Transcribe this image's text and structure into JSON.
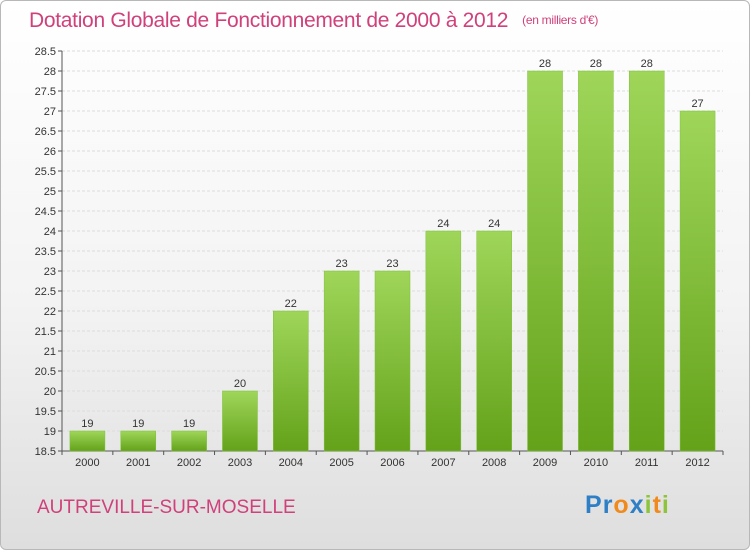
{
  "header": {
    "title": "Dotation Globale de Fonctionnement de 2000 à 2012",
    "unit": "(en milliers d'€)"
  },
  "footer": {
    "commune": "AUTREVILLE-SUR-MOSELLE",
    "logo": {
      "text": "Proxiti",
      "letters": [
        {
          "ch": "P",
          "color": "#2e7fc6"
        },
        {
          "ch": "r",
          "color": "#2e7fc6"
        },
        {
          "ch": "o",
          "color": "#f08a1c"
        },
        {
          "ch": "x",
          "color": "#2e7fc6"
        },
        {
          "ch": "i",
          "color": "#8cc43c"
        },
        {
          "ch": "t",
          "color": "#f08a1c"
        },
        {
          "ch": "i",
          "color": "#8cc43c"
        }
      ]
    }
  },
  "colors": {
    "bar_top": "#9fd65a",
    "bar_bottom": "#64a21a",
    "title": "#d0407a"
  },
  "chart_data": {
    "type": "bar",
    "title": "Dotation Globale de Fonctionnement de 2000 à 2012",
    "xlabel": "",
    "ylabel": "",
    "categories": [
      "2000",
      "2001",
      "2002",
      "2003",
      "2004",
      "2005",
      "2006",
      "2007",
      "2008",
      "2009",
      "2010",
      "2011",
      "2012"
    ],
    "values": [
      19,
      19,
      19,
      20,
      22,
      23,
      23,
      24,
      24,
      28,
      28,
      28,
      27
    ],
    "ylim": [
      18.5,
      28.5
    ],
    "yticks": [
      "18.5",
      "19",
      "19.5",
      "20",
      "20.5",
      "21",
      "21.5",
      "22",
      "22.5",
      "23",
      "23.5",
      "24",
      "24.5",
      "25",
      "25.5",
      "26",
      "26.5",
      "27",
      "27.5",
      "28",
      "28.5"
    ],
    "grid": true,
    "legend": "none"
  }
}
